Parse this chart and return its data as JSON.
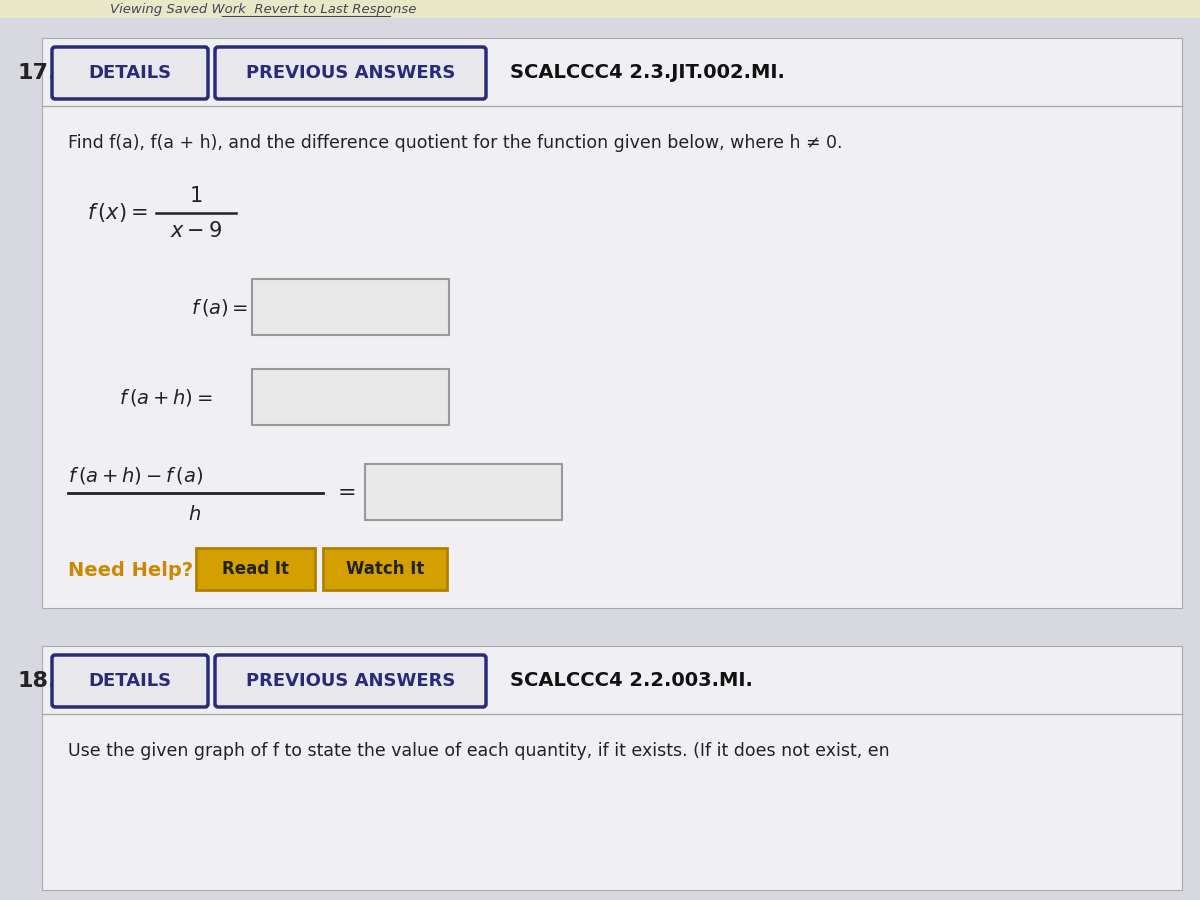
{
  "bg_color": "#d8d8e0",
  "top_strip_color": "#e8e8c8",
  "top_text": "Viewing Saved Work  Revert to Last Response",
  "top_text_color": "#444455",
  "section1_number": "17.",
  "section1_details_label": "DETAILS",
  "section1_prev_label": "PREVIOUS ANSWERS",
  "section1_code": "SCALCCC4 2.3.JIT.002.MI.",
  "problem_text": "Find f(a), f(a + h), and the difference quotient for the function given below, where h ≠ 0.",
  "need_help_label": "Need Help?",
  "need_help_color": "#cc8800",
  "btn_read": "Read It",
  "btn_watch": "Watch It",
  "btn_bg": "#d4a000",
  "btn_border": "#b08000",
  "section2_number": "18.",
  "section2_details_label": "DETAILS",
  "section2_prev_label": "PREVIOUS ANSWERS",
  "section2_code": "SCALCCC4 2.2.003.MI.",
  "section2_text": "Use the given graph of f to state the value of each quantity, if it exists. (If it does not exist, en",
  "white_box_color": "#e8e8e8",
  "box_border_color": "#999999",
  "section_bg": "#e8e8ec",
  "inner_bg": "#f0f0f4",
  "btn_outline": "#2a2a7a",
  "number_color": "#222222",
  "label_color": "#222222",
  "details_btn_bg": "#e8e8ec",
  "header_line_color": "#aaaaaa"
}
